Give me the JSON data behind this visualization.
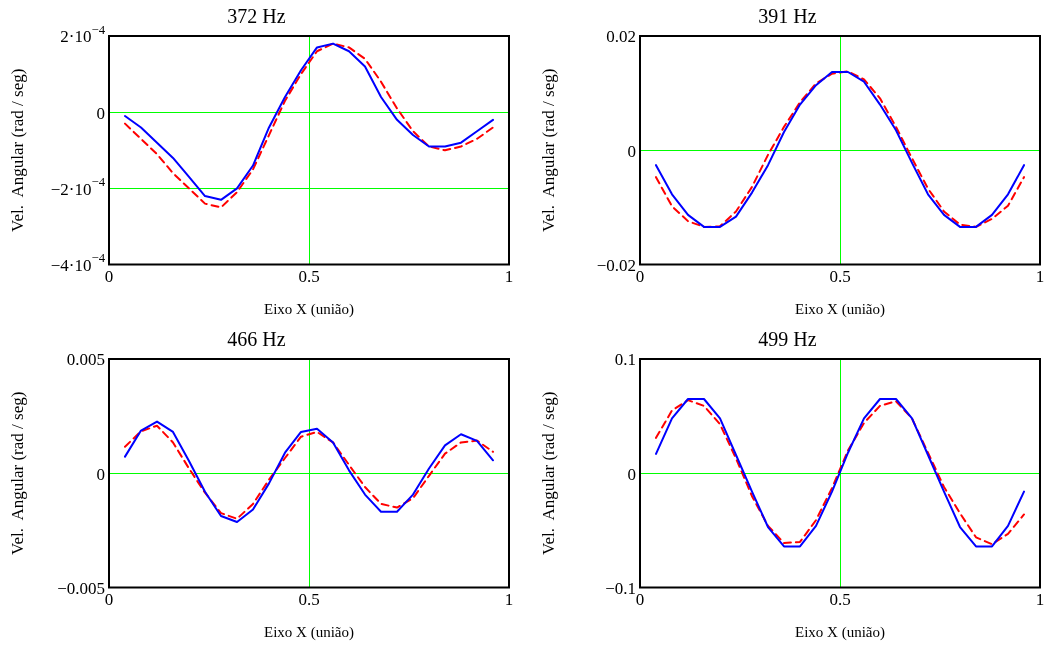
{
  "chart_data": [
    {
      "type": "line",
      "title": "372 Hz",
      "xlabel": "Eixo X (união)",
      "ylabel": "Vel.  Angular (rad / seg)",
      "marker": "none",
      "grid": true,
      "x": [
        0.04,
        0.08,
        0.12,
        0.16,
        0.2,
        0.24,
        0.28,
        0.32,
        0.36,
        0.4,
        0.44,
        0.48,
        0.52,
        0.56,
        0.6,
        0.64,
        0.68,
        0.72,
        0.76,
        0.8,
        0.84,
        0.88,
        0.92,
        0.96
      ],
      "xlim": [
        0,
        1
      ],
      "xticks": [
        0,
        0.5,
        1
      ],
      "ylim": [
        -0.0004,
        0.0002
      ],
      "yticks": [
        {
          "value": -0.0004,
          "label": "−4·10$^{−4}$"
        },
        {
          "value": -0.0002,
          "label": "−2·10$^{−4}$"
        },
        0,
        {
          "value": 0.0002,
          "label": "2·10$^{−4}$"
        }
      ],
      "series": [
        {
          "color": "#0000ff",
          "line_style": "solid",
          "values": [
            -1e-05,
            -4e-05,
            -8e-05,
            -0.00012,
            -0.00017,
            -0.00022,
            -0.00023,
            -0.0002,
            -0.00014,
            -4e-05,
            4e-05,
            0.00011,
            0.00017,
            0.00018,
            0.00016,
            0.00012,
            4e-05,
            -2e-05,
            -6e-05,
            -9e-05,
            -9e-05,
            -8e-05,
            -5e-05,
            -2e-05
          ]
        },
        {
          "color": "#ff0000",
          "line_style": "dashed",
          "values": [
            -3e-05,
            -7e-05,
            -0.00011,
            -0.00016,
            -0.0002,
            -0.00024,
            -0.00025,
            -0.00021,
            -0.00015,
            -6e-05,
            3e-05,
            0.0001,
            0.00016,
            0.00018,
            0.00017,
            0.00014,
            8e-05,
            1e-05,
            -5e-05,
            -9e-05,
            -0.0001,
            -9e-05,
            -7e-05,
            -4e-05
          ]
        }
      ]
    },
    {
      "type": "line",
      "title": "391 Hz",
      "xlabel": "Eixo X (união)",
      "ylabel": "Vel.  Angular (rad / seg)",
      "marker": "none",
      "grid": true,
      "x": [
        0.04,
        0.08,
        0.12,
        0.16,
        0.2,
        0.24,
        0.28,
        0.32,
        0.36,
        0.4,
        0.44,
        0.48,
        0.52,
        0.56,
        0.6,
        0.64,
        0.68,
        0.72,
        0.76,
        0.8,
        0.84,
        0.88,
        0.92,
        0.96
      ],
      "xlim": [
        0,
        1
      ],
      "xticks": [
        0,
        0.5,
        1
      ],
      "ylim": [
        -0.02,
        0.02
      ],
      "yticks": [
        {
          "value": -0.02,
          "label": "−0.02"
        },
        0,
        0.02
      ],
      "series": [
        {
          "color": "#0000ff",
          "line_style": "solid",
          "values": [
            -0.0026,
            -0.0077,
            -0.0113,
            -0.0134,
            -0.0134,
            -0.0116,
            -0.0074,
            -0.0026,
            0.0032,
            0.008,
            0.0114,
            0.0137,
            0.0137,
            0.012,
            0.008,
            0.0035,
            -0.0022,
            -0.0077,
            -0.0113,
            -0.0134,
            -0.0134,
            -0.0113,
            -0.0077,
            -0.0026
          ]
        },
        {
          "color": "#ff0000",
          "line_style": "dashed",
          "values": [
            -0.0047,
            -0.0098,
            -0.0124,
            -0.0134,
            -0.0133,
            -0.0107,
            -0.0064,
            -0.0008,
            0.0041,
            0.0084,
            0.0117,
            0.0134,
            0.0138,
            0.0124,
            0.0091,
            0.0041,
            -0.0014,
            -0.0067,
            -0.0107,
            -0.013,
            -0.0134,
            -0.012,
            -0.0097,
            -0.0047
          ]
        }
      ]
    },
    {
      "type": "line",
      "title": "466 Hz",
      "xlabel": "Eixo X (união)",
      "ylabel": "Vel.  Angular (rad / seg)",
      "marker": "none",
      "grid": true,
      "x": [
        0.04,
        0.08,
        0.12,
        0.16,
        0.2,
        0.24,
        0.28,
        0.32,
        0.36,
        0.4,
        0.44,
        0.48,
        0.52,
        0.56,
        0.6,
        0.64,
        0.68,
        0.72,
        0.76,
        0.8,
        0.84,
        0.88,
        0.92,
        0.96
      ],
      "xlim": [
        0,
        1
      ],
      "xticks": [
        0,
        0.5,
        1
      ],
      "ylim": [
        -0.005,
        0.005
      ],
      "yticks": [
        {
          "value": -0.005,
          "label": "−0.005"
        },
        0,
        0.005
      ],
      "series": [
        {
          "color": "#0000ff",
          "line_style": "solid",
          "values": [
            0.00073,
            0.00187,
            0.00226,
            0.00181,
            0.00054,
            -0.00081,
            -0.00187,
            -0.00213,
            -0.00158,
            -0.00044,
            0.0009,
            0.00181,
            0.00195,
            0.00135,
            0.00013,
            -0.00093,
            -0.00168,
            -0.00168,
            -0.00093,
            0.00021,
            0.00122,
            0.00171,
            0.00142,
            0.00057
          ]
        },
        {
          "color": "#ff0000",
          "line_style": "dashed",
          "values": [
            0.00116,
            0.00184,
            0.00208,
            0.00135,
            0.00021,
            -0.00085,
            -0.00174,
            -0.00199,
            -0.00134,
            -0.00028,
            0.00067,
            0.0016,
            0.00181,
            0.00135,
            0.00037,
            -0.0006,
            -0.00134,
            -0.0015,
            -0.00109,
            -0.00011,
            0.00086,
            0.00135,
            0.00143,
            0.00094
          ]
        }
      ]
    },
    {
      "type": "line",
      "title": "499 Hz",
      "xlabel": "Eixo X (união)",
      "ylabel": "Vel.  Angular (rad / seg)",
      "marker": "none",
      "grid": true,
      "x": [
        0.04,
        0.08,
        0.12,
        0.16,
        0.2,
        0.24,
        0.28,
        0.32,
        0.36,
        0.4,
        0.44,
        0.48,
        0.52,
        0.56,
        0.6,
        0.64,
        0.68,
        0.72,
        0.76,
        0.8,
        0.84,
        0.88,
        0.92,
        0.96
      ],
      "xlim": [
        0,
        1
      ],
      "xticks": [
        0,
        0.5,
        1
      ],
      "ylim": [
        -0.1,
        0.1
      ],
      "yticks": [
        {
          "value": -0.1,
          "label": "−0.1"
        },
        0,
        0.1
      ],
      "series": [
        {
          "color": "#0000ff",
          "line_style": "solid",
          "values": [
            0.017,
            0.048,
            0.065,
            0.065,
            0.048,
            0.016,
            -0.016,
            -0.047,
            -0.064,
            -0.064,
            -0.046,
            -0.016,
            0.018,
            0.048,
            0.065,
            0.065,
            0.048,
            0.016,
            -0.016,
            -0.047,
            -0.064,
            -0.064,
            -0.046,
            -0.016
          ]
        },
        {
          "color": "#ff0000",
          "line_style": "dashed",
          "values": [
            0.031,
            0.055,
            0.064,
            0.059,
            0.043,
            0.013,
            -0.02,
            -0.046,
            -0.061,
            -0.06,
            -0.041,
            -0.013,
            0.02,
            0.044,
            0.059,
            0.063,
            0.048,
            0.018,
            -0.012,
            -0.035,
            -0.056,
            -0.062,
            -0.053,
            -0.036
          ]
        }
      ]
    }
  ]
}
